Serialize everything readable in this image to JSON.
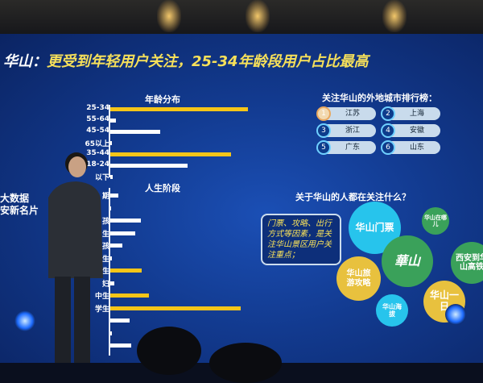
{
  "slide": {
    "title_prefix": "华山：",
    "title_highlight": "更受到年轻用户关注，25-34年龄段用户占比最高",
    "side_text": [
      "大数据",
      "安新名片"
    ]
  },
  "age_chart": {
    "title": "年龄分布",
    "categories": [
      "25-34",
      "55-64",
      "45-54",
      "65以上",
      "35-44",
      "18-24",
      "以下"
    ],
    "values": [
      100,
      4,
      36,
      1,
      88,
      56,
      2
    ],
    "highlight": [
      true,
      false,
      false,
      false,
      true,
      false,
      false
    ]
  },
  "life_chart": {
    "title": "人生阶段",
    "categories": [
      "期",
      "",
      "孩",
      "生",
      "孩",
      "生",
      "生",
      "妇",
      "中生",
      "学生",
      "",
      "",
      ""
    ],
    "values": [
      6,
      0,
      22,
      18,
      9,
      1,
      23,
      3,
      28,
      95,
      14,
      1,
      15
    ],
    "highlight": [
      false,
      false,
      false,
      false,
      false,
      false,
      true,
      false,
      true,
      true,
      false,
      false,
      false
    ]
  },
  "city_ranking": {
    "title": "关注华山的外地城市排行榜：",
    "items": [
      {
        "rank": "1",
        "city": "江苏"
      },
      {
        "rank": "2",
        "city": "上海"
      },
      {
        "rank": "3",
        "city": "浙江"
      },
      {
        "rank": "4",
        "city": "安徽"
      },
      {
        "rank": "5",
        "city": "广东"
      },
      {
        "rank": "6",
        "city": "山东"
      }
    ]
  },
  "interests": {
    "question": "关于华山的人都在关注什么？",
    "callout": "门票、攻略、出行方式等因素，是关注华山景区用户关注重点；",
    "bubbles": [
      "华山门票",
      "华山在哪儿",
      "西安到华山高铁",
      "华山旅游攻略",
      "华山海拔",
      "华山一日"
    ],
    "logo": "華山"
  },
  "colors": {
    "highlight": "#f5c518",
    "bar": "#ffffff",
    "bg": "#123a8f"
  }
}
